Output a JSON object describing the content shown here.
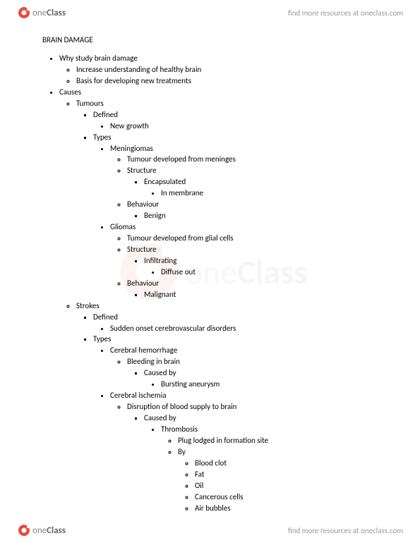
{
  "brand": {
    "name_part1": "one",
    "name_part2": "Class",
    "icon_color_outer": "#e74c3c",
    "icon_color_inner": "#ffffff"
  },
  "header": {
    "link_text": "find more resources at oneclass.com"
  },
  "footer": {
    "link_text": "find more resources at oneclass.com"
  },
  "doc": {
    "title": "BRAIN DAMAGE",
    "outline": [
      {
        "t": "Why study brain damage",
        "c": [
          {
            "t": "Increase understanding of healthy brain"
          },
          {
            "t": "Basis for developing new treatments"
          }
        ]
      },
      {
        "t": "Causes",
        "c": [
          {
            "t": "Tumours",
            "c": [
              {
                "t": "Defined",
                "c": [
                  {
                    "t": "New growth"
                  }
                ]
              },
              {
                "t": "Types",
                "c": [
                  {
                    "t": "Meningiomas",
                    "c": [
                      {
                        "t": "Tumour developed from meninges"
                      },
                      {
                        "t": "Structure",
                        "c": [
                          {
                            "t": "Encapsulated",
                            "c": [
                              {
                                "t": "In membrane"
                              }
                            ]
                          }
                        ]
                      },
                      {
                        "t": "Behaviour",
                        "c": [
                          {
                            "t": "Benign"
                          }
                        ]
                      }
                    ]
                  },
                  {
                    "t": "Gliomas",
                    "c": [
                      {
                        "t": "Tumour developed from glial cells"
                      },
                      {
                        "t": "Structure",
                        "c": [
                          {
                            "t": "Infiltrating",
                            "c": [
                              {
                                "t": "Diffuse out"
                              }
                            ]
                          }
                        ]
                      },
                      {
                        "t": "Behaviour",
                        "c": [
                          {
                            "t": "Malignant"
                          }
                        ]
                      }
                    ]
                  }
                ]
              }
            ]
          },
          {
            "t": "Strokes",
            "c": [
              {
                "t": "Defined",
                "c": [
                  {
                    "t": "Sudden onset cerebrovascular disorders"
                  }
                ]
              },
              {
                "t": "Types",
                "c": [
                  {
                    "t": "Cerebral hemorrhage",
                    "c": [
                      {
                        "t": "Bleeding in brain",
                        "c": [
                          {
                            "t": "Caused by",
                            "c": [
                              {
                                "t": "Bursting aneurysm"
                              }
                            ]
                          }
                        ]
                      }
                    ]
                  },
                  {
                    "t": "Cerebral ischemia",
                    "c": [
                      {
                        "t": "Disruption of blood supply to brain",
                        "c": [
                          {
                            "t": "Caused by",
                            "c": [
                              {
                                "t": "Thrombosis",
                                "c": [
                                  {
                                    "t": "Plug lodged in formation site"
                                  },
                                  {
                                    "t": "By",
                                    "c": [
                                      {
                                        "t": "Blood clot"
                                      },
                                      {
                                        "t": "Fat"
                                      },
                                      {
                                        "t": "Oil"
                                      },
                                      {
                                        "t": "Cancerous cells"
                                      },
                                      {
                                        "t": "Air bubbles"
                                      }
                                    ]
                                  }
                                ]
                              }
                            ]
                          }
                        ]
                      }
                    ]
                  }
                ]
              }
            ]
          }
        ]
      }
    ]
  }
}
